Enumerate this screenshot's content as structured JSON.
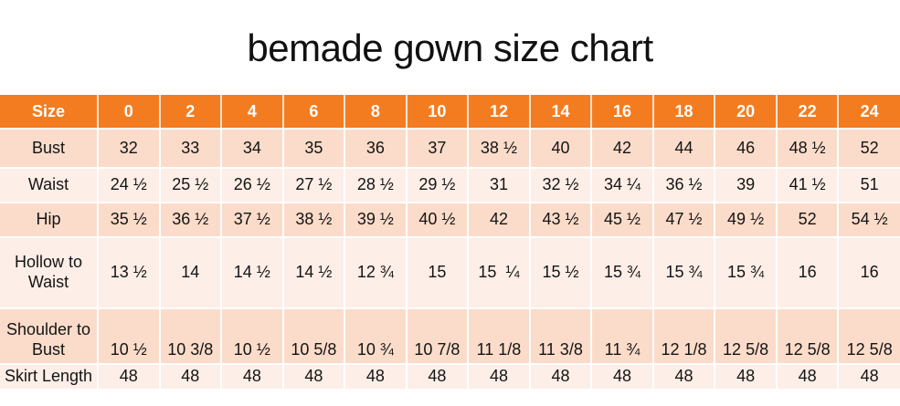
{
  "title": "bemade gown size chart",
  "colors": {
    "header_bg": "#F47C20",
    "header_text": "#FFFFFF",
    "row_band_dark": "#FBDCCA",
    "row_band_light": "#FDEEE7",
    "divider": "#FFFFFF",
    "body_text": "#141414"
  },
  "chart_data": {
    "type": "table",
    "title": "bemade gown size chart",
    "columns": [
      "Size",
      "0",
      "2",
      "4",
      "6",
      "8",
      "10",
      "12",
      "14",
      "16",
      "18",
      "20",
      "22",
      "24"
    ],
    "rows": [
      {
        "label": "Bust",
        "values": [
          "32",
          "33",
          "34",
          "35",
          "36",
          "37",
          "38 ½",
          "40",
          "42",
          "44",
          "46",
          "48 ½",
          "52"
        ]
      },
      {
        "label": "Waist",
        "values": [
          "24 ½",
          "25 ½",
          "26 ½",
          "27 ½",
          "28 ½",
          "29 ½",
          "31",
          "32 ½",
          "34 ¼",
          "36 ½",
          "39",
          "41 ½",
          "51"
        ]
      },
      {
        "label": "Hip",
        "values": [
          "35 ½",
          "36 ½",
          "37 ½",
          "38 ½",
          "39 ½",
          "40 ½",
          "42",
          "43 ½",
          "45 ½",
          "47 ½",
          "49 ½",
          "52",
          "54 ½"
        ]
      },
      {
        "label": "Hollow to Waist",
        "values": [
          "13 ½",
          "14",
          "14 ½",
          "14 ½",
          "12 ¾",
          "15",
          "15  ¼",
          "15 ½",
          "15 ¾",
          "15 ¾",
          "15 ¾",
          "16",
          "16"
        ]
      },
      {
        "label": "Shoulder to Bust",
        "values": [
          "10 ½",
          "10 3/8",
          "10 ½",
          "10 5/8",
          "10 ¾",
          "10 7/8",
          "11 1/8",
          "11 3/8",
          "11 ¾",
          "12 1/8",
          "12 5/8",
          "12 5/8",
          "12 5/8"
        ]
      },
      {
        "label": "Skirt Length",
        "values": [
          "48",
          "48",
          "48",
          "48",
          "48",
          "48",
          "48",
          "48",
          "48",
          "48",
          "48",
          "48",
          "48"
        ]
      }
    ]
  }
}
